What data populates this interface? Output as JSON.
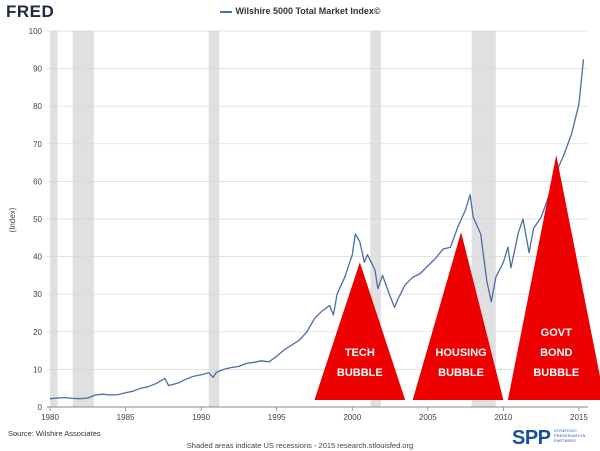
{
  "brand": {
    "logo_text": "FRED"
  },
  "chart_data": {
    "type": "line",
    "title": "Wilshire 5000 Total Market Index©",
    "ylabel": "(Index)",
    "xlabel": "",
    "ylim": [
      0,
      100
    ],
    "xlim": [
      1979.8,
      2015.6
    ],
    "y_ticks": [
      0,
      10,
      20,
      30,
      40,
      50,
      60,
      70,
      80,
      90,
      100
    ],
    "x_ticks": [
      1980,
      1985,
      1990,
      1995,
      2000,
      2005,
      2010,
      2015
    ],
    "grid": true,
    "series": [
      {
        "x": [
          1980.0,
          1980.5,
          1981.0,
          1981.5,
          1982.0,
          1982.5,
          1983.0,
          1983.5,
          1984.0,
          1984.5,
          1985.0,
          1985.5,
          1986.0,
          1986.5,
          1987.0,
          1987.6,
          1987.85,
          1988.5,
          1989.0,
          1989.5,
          1990.0,
          1990.5,
          1990.8,
          1991.0,
          1991.5,
          1992.0,
          1992.5,
          1993.0,
          1993.5,
          1994.0,
          1994.5,
          1995.0,
          1995.5,
          1996.0,
          1996.5,
          1997.0,
          1997.5,
          1998.0,
          1998.5,
          1998.75,
          1999.0,
          1999.5,
          2000.0,
          2000.2,
          2000.5,
          2000.8,
          2001.0,
          2001.5,
          2001.7,
          2002.0,
          2002.5,
          2002.8,
          2003.0,
          2003.5,
          2004.0,
          2004.5,
          2005.0,
          2005.5,
          2006.0,
          2006.5,
          2007.0,
          2007.5,
          2007.8,
          2008.0,
          2008.5,
          2008.9,
          2009.2,
          2009.5,
          2010.0,
          2010.3,
          2010.5,
          2011.0,
          2011.3,
          2011.7,
          2012.0,
          2012.5,
          2013.0,
          2013.5,
          2014.0,
          2014.5,
          2015.0,
          2015.3
        ],
        "y": [
          2.2,
          2.4,
          2.5,
          2.3,
          2.2,
          2.4,
          3.2,
          3.4,
          3.2,
          3.3,
          3.8,
          4.2,
          5.0,
          5.4,
          6.2,
          7.6,
          5.7,
          6.4,
          7.4,
          8.2,
          8.6,
          9.1,
          7.9,
          9.2,
          10.0,
          10.5,
          10.8,
          11.6,
          11.9,
          12.3,
          12.0,
          13.5,
          15.2,
          16.5,
          17.8,
          20.0,
          23.5,
          25.5,
          27.0,
          24.5,
          30.0,
          34.5,
          40.5,
          46.0,
          44.0,
          38.5,
          40.5,
          36.5,
          31.5,
          35.0,
          29.5,
          26.5,
          28.5,
          32.5,
          34.5,
          35.5,
          37.5,
          39.5,
          42.0,
          42.5,
          48.0,
          52.5,
          56.5,
          50.5,
          46.0,
          33.5,
          28.0,
          34.5,
          38.5,
          42.5,
          37.0,
          46.5,
          50.0,
          41.0,
          47.5,
          50.5,
          56.0,
          62.5,
          67.0,
          72.5,
          80.5,
          92.5
        ]
      }
    ],
    "recessions": [
      [
        1980.0,
        1980.5
      ],
      [
        1981.5,
        1982.9
      ],
      [
        1990.5,
        1991.2
      ],
      [
        2001.2,
        2001.9
      ],
      [
        2007.9,
        2009.5
      ]
    ],
    "annotations": [
      {
        "apex_x": 2000.5,
        "apex_y": 38.5,
        "base_x0": 1997.5,
        "base_x1": 2003.5,
        "lines": [
          "TECH",
          "BUBBLE"
        ]
      },
      {
        "apex_x": 2007.2,
        "apex_y": 46.5,
        "base_x0": 2004.0,
        "base_x1": 2010.0,
        "lines": [
          "HOUSING",
          "BUBBLE"
        ]
      },
      {
        "apex_x": 2013.5,
        "apex_y": 67.0,
        "base_x0": 2010.3,
        "base_x1": 2016.7,
        "lines": [
          "GOVT",
          "BOND",
          "BUBBLE"
        ]
      }
    ],
    "colors": {
      "line": "#4a6ea6",
      "recession": "#e0e0e0",
      "annotation": "#ec0000",
      "annotation_text": "#ffffff"
    }
  },
  "footer": {
    "source": "Source: Wilshire Associates",
    "note": "Shaded areas indicate US recessions - 2015 research.stlouisfed.org"
  },
  "spp_logo": {
    "letters": "SPP",
    "subtitle": "STRATEGIC PRESERVATION PARTNERS"
  }
}
